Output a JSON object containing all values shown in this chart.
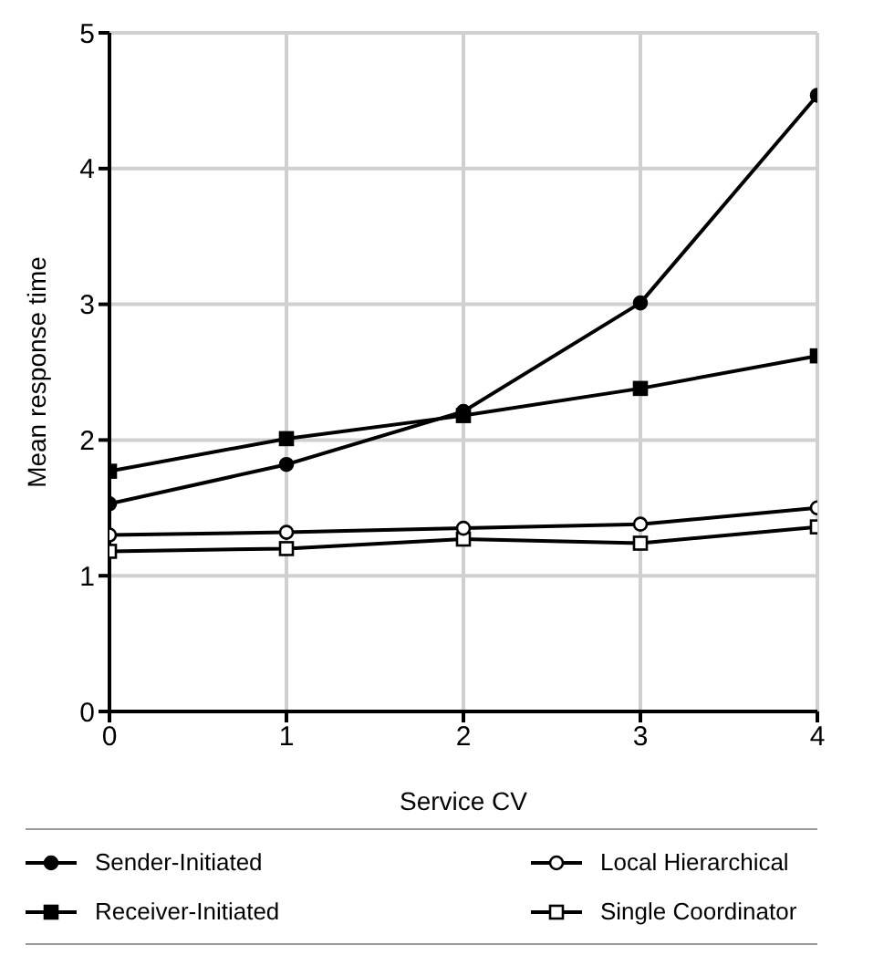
{
  "chart_data": {
    "type": "line",
    "xlabel": "Service CV",
    "ylabel": "Mean response time",
    "x": [
      0,
      1,
      2,
      3,
      4
    ],
    "xlim": [
      0,
      4
    ],
    "xticks": [
      0,
      1,
      2,
      3,
      4
    ],
    "ylim": [
      0,
      5
    ],
    "yticks": [
      0,
      1,
      2,
      3,
      4,
      5
    ],
    "grid": true,
    "legend": "bottom",
    "line_style": "solid",
    "series": [
      {
        "name": "Sender-Initiated",
        "color": "#000000",
        "marker": "circle",
        "values": [
          1.53,
          1.82,
          2.21,
          3.01,
          4.54
        ]
      },
      {
        "name": "Local Hierarchical",
        "color": "#000000",
        "marker": "circle",
        "values": [
          1.3,
          1.32,
          1.35,
          1.38,
          1.5
        ]
      },
      {
        "name": "Receiver-Initiated",
        "color": "#000000",
        "marker": "square",
        "values": [
          1.77,
          2.01,
          2.18,
          2.38,
          2.62
        ]
      },
      {
        "name": "Single Coordinator",
        "color": "#000000",
        "marker": "square",
        "values": [
          1.18,
          1.2,
          1.27,
          1.24,
          1.36
        ]
      }
    ]
  }
}
